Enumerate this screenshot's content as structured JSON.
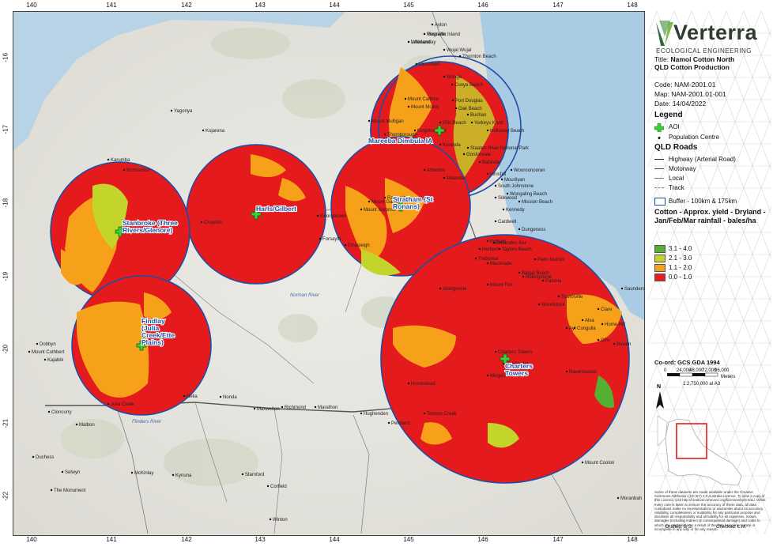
{
  "map": {
    "lon_ticks": [
      "140",
      "141",
      "142",
      "143",
      "144",
      "145",
      "146",
      "147",
      "148"
    ],
    "lat_ticks": [
      "-16",
      "-17",
      "-18",
      "-19",
      "-20",
      "-21",
      "-22"
    ],
    "aois": [
      {
        "name": "Mareeba Dimbula IA"
      },
      {
        "name": "Stratham (St Ronans)"
      },
      {
        "name": "Harls/Gilbert"
      },
      {
        "name": "Stanbroke (Three Rivers/Glenore)"
      },
      {
        "name": "Findlay (Julia Creek/Ette Plains)"
      },
      {
        "name": "Charters Towers"
      }
    ],
    "places": [
      "Rossville",
      "Lakeland",
      "Ayton",
      "Wujal Wujal",
      "Mossman",
      "Port Douglas",
      "Wonga",
      "Cooya Beach",
      "Mount Molloy",
      "Mount Carbine",
      "Oak Beach",
      "Buchan",
      "Mount Mulligan",
      "Ellis Beach",
      "Holloway Beach",
      "Yorkeys Knob",
      "Kingsborough",
      "Thornborough",
      "Kuranda",
      "Gordonvale",
      "Babinda",
      "Atherton",
      "Malanda",
      "Ravenshoe",
      "Innisfail",
      "Wooroonooran",
      "South Johnstone",
      "Mourilyan",
      "Silkwood",
      "Mission Beach",
      "Kennedy",
      "Wongaling Beach",
      "Cardwell",
      "Dungeness",
      "Ingham",
      "Herbert",
      "Taylors Beach",
      "Trebonne",
      "Macknade",
      "Mount Garnet",
      "Mount Surprise",
      "Georgetown",
      "Forsayth",
      "Croydon",
      "Einasleigh",
      "Karumba",
      "Normanton",
      "Kajabbi",
      "Dobbyn",
      "Mount Cuthbert",
      "Cloncurry",
      "Julia Creek",
      "Nelia",
      "Nonda",
      "Maxwelton",
      "Richmond",
      "Marathon",
      "Hughenden",
      "Pentland",
      "Torrens Creek",
      "Homestead",
      "Charters Towers",
      "Millchester",
      "Ravenswood",
      "Mingela",
      "Palm Islands",
      "Rollingstone",
      "Townsville",
      "Woodstock",
      "Alva",
      "Ayr",
      "Home Hill",
      "Giru",
      "Clare",
      "Cungulla",
      "Bowen",
      "Mount Coolon",
      "Moranbah",
      "Malbon",
      "Duchess",
      "Selwyn",
      "The Monument",
      "McKinlay",
      "Kynuna",
      "Stamford",
      "Corfield",
      "Winton",
      "Thornton Beach",
      "Kojarena",
      "Yagonya",
      "Staaten River National Park",
      "Bellenden Ker",
      "Abergowrie",
      "Mount Fox",
      "Balgal Beach",
      "Paluma",
      "Saunders Beach",
      "Magnetic Island",
      "Whitsunday"
    ],
    "water_labels": [
      "Flinders River",
      "Norman River"
    ]
  },
  "panel": {
    "logo_word": "Verterra",
    "logo_sub": "ECOLOGICAL ENGINEERING",
    "title_label": "Title:",
    "title_value": "Namoi Cotton North QLD Cotton Production",
    "code_label": "Code:",
    "code_value": "NAM-2001.01",
    "map_label": "Map:",
    "map_value": "NAM-2001.01-001",
    "date_label": "Date:",
    "date_value": "14/04/2022",
    "legend_title": "Legend",
    "legend_aoi": "AOI",
    "legend_population": "Population Centre",
    "roads_title": "QLD Roads",
    "roads": [
      "Highway (Arterial Road)",
      "Motorway",
      "Local",
      "Track"
    ],
    "buffer": "Buffer - 100km & 175km",
    "cotton_title": "Cotton - Approx. yield - Dryland - Jan/Feb/Mar rainfall - bales/ha",
    "classes": [
      {
        "label": "3.1 - 4.0",
        "color": "#55b032"
      },
      {
        "label": "2.1 - 3.0",
        "color": "#c3d52a"
      },
      {
        "label": "1.1 - 2.0",
        "color": "#f7a11a"
      },
      {
        "label": "0.0 - 1.0",
        "color": "#ee1c1c"
      }
    ],
    "coord_system": "Co-ord: GCS GDA 1994",
    "scale_labels": [
      "0",
      "24,000",
      "48,000",
      "72,000",
      "96,000"
    ],
    "scale_unit": "Meters",
    "scale_ratio": "1:2,750,000 at A3",
    "north": "N",
    "fine_print": "Some of these datasets are made available under the Creative Commons Attribution (CC BY) 3.0 Australia Licence. To view a copy of this Licence, visit http://creativecommons.org/licenses/by/3.0/au. While every care is taken to ensure the accuracy of these data, all data custodians make no representations or warranties about its accuracy, reliability, completeness or suitability for any particular purpose and disclaims all responsibility and all liability for all expenses, losses, damages (including indirect or consequential damage) and costs to which you might incur as a result of the data being inaccurate or incomplete in any way or for any reason.",
    "drafted": "Drafted: B.S.",
    "checked": "Checked: L.M."
  }
}
